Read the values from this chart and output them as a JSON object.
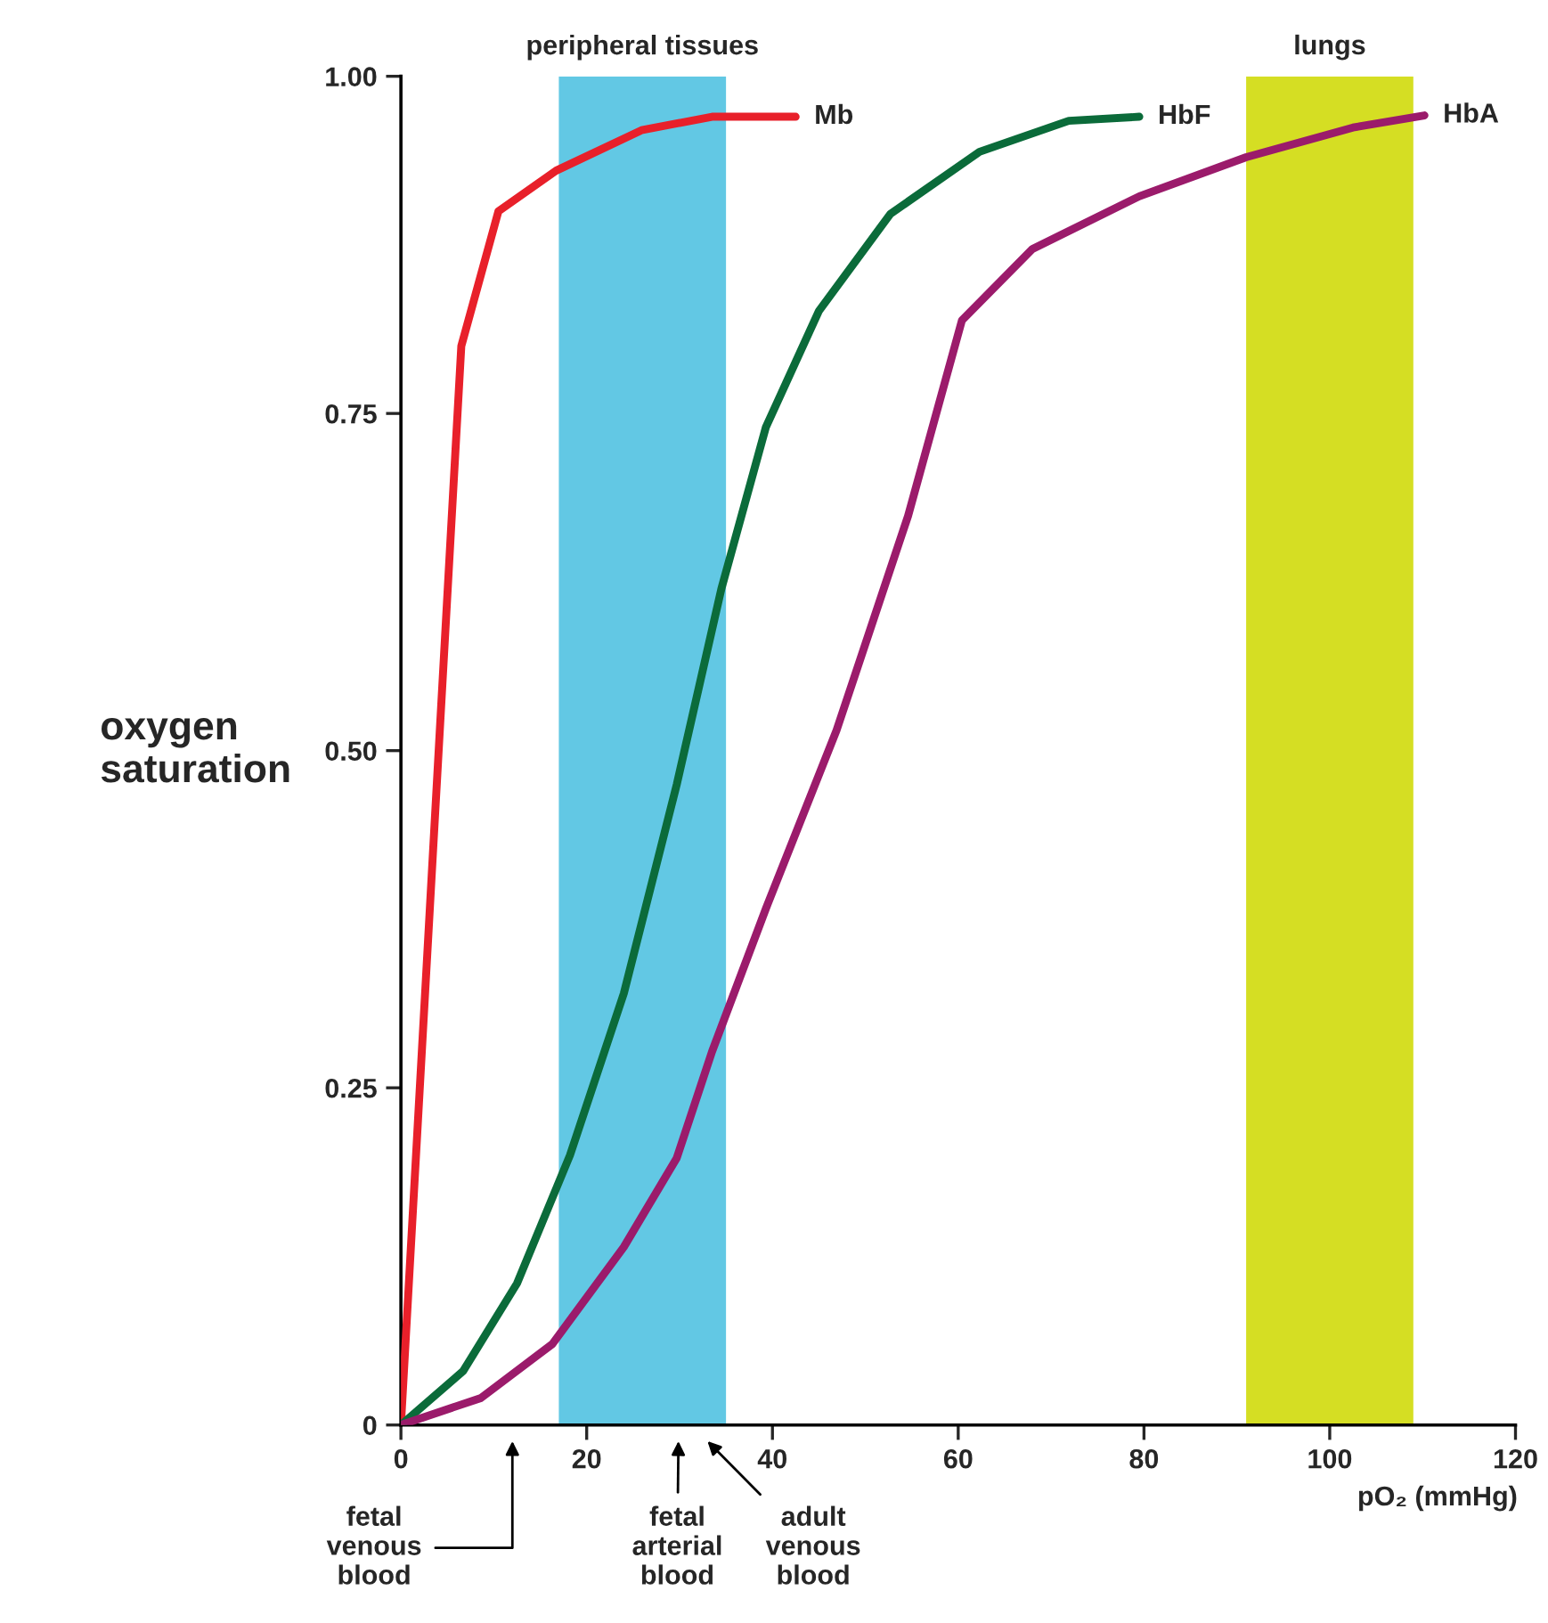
{
  "chart_data": {
    "type": "line",
    "xlabel": "pO₂ (mmHg)",
    "ylabel": "oxygen\nsaturation",
    "xlim": [
      0,
      120
    ],
    "xticks": [
      0,
      20,
      40,
      60,
      80,
      100,
      120
    ],
    "ylim": [
      0,
      1
    ],
    "yticks": [
      {
        "value": 0,
        "label": "0"
      },
      {
        "value": 0.25,
        "label": "0.25"
      },
      {
        "value": 0.5,
        "label": "0.50"
      },
      {
        "value": 0.75,
        "label": "0.75"
      },
      {
        "value": 1,
        "label": "1.00"
      }
    ],
    "grid": false,
    "legend": false,
    "line_style": "solid",
    "marker": "none",
    "bands": [
      {
        "axis": "x",
        "from": 17,
        "to": 35,
        "label": "peripheral tissues",
        "color": "#62c8e4"
      },
      {
        "axis": "x",
        "from": 91,
        "to": 109,
        "label": "lungs",
        "color": "#d5de23"
      }
    ],
    "series": [
      {
        "name": "Mb",
        "color": "#e8202a",
        "x": [
          0,
          6.5,
          10.5,
          16.7,
          25.9,
          33.5,
          42.5
        ],
        "values": [
          0,
          0.8,
          0.9,
          0.93,
          0.96,
          0.97,
          0.97
        ]
      },
      {
        "name": "HbF",
        "color": "#0b6b3a",
        "x": [
          0,
          6.7,
          12.5,
          18.2,
          24,
          29.7,
          34.5,
          39.3,
          45,
          52.7,
          62.3,
          71.9,
          79.5
        ],
        "values": [
          0,
          0.04,
          0.105,
          0.2,
          0.32,
          0.475,
          0.62,
          0.74,
          0.826,
          0.898,
          0.944,
          0.967,
          0.97
        ]
      },
      {
        "name": "HbA",
        "color": "#9b1b6b",
        "x": [
          0,
          8.6,
          16.3,
          24,
          29.7,
          33.5,
          39.3,
          46.9,
          54.6,
          60.4,
          68,
          79.5,
          91,
          102.5,
          110.2
        ],
        "values": [
          0,
          0.02,
          0.06,
          0.132,
          0.198,
          0.277,
          0.383,
          0.515,
          0.674,
          0.819,
          0.872,
          0.911,
          0.94,
          0.962,
          0.971
        ]
      }
    ],
    "annotations": [
      "fetal\nvenous\nblood",
      "fetal\narterial\nblood",
      "adult\nvenous\nblood"
    ]
  }
}
